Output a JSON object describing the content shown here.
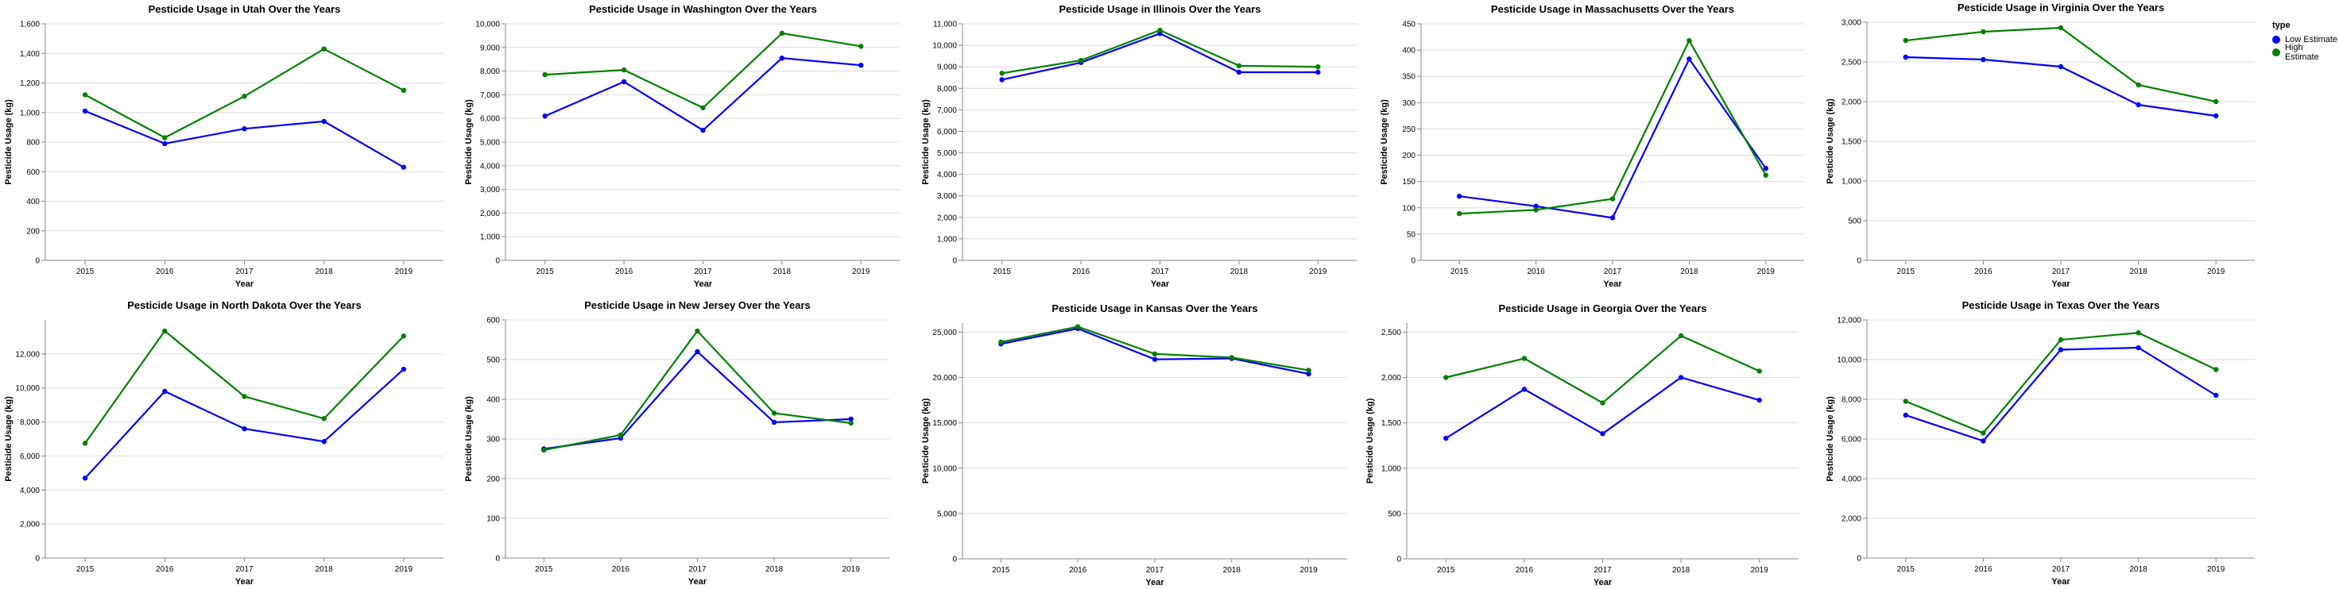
{
  "legend": {
    "title": "type",
    "items": [
      {
        "label": "Low Estimate",
        "color": "#0000ff"
      },
      {
        "label": "High Estimate",
        "color": "#008000"
      }
    ]
  },
  "chart_data": [
    {
      "type": "line",
      "title": "Pesticide Usage in Utah Over the Years",
      "x": [
        2015,
        2016,
        2017,
        2018,
        2019
      ],
      "xlabel": "Year",
      "ylabel": "Pesticide Usage (kg)",
      "ylim": [
        0,
        1600
      ],
      "yticks": [
        0,
        200,
        400,
        600,
        800,
        1000,
        1200,
        1400,
        1600
      ],
      "ytick_labels": [
        "0",
        "200",
        "400",
        "600",
        "800",
        "1,000",
        "1,200",
        "1,400",
        "1,600"
      ],
      "series": [
        {
          "name": "Low Estimate",
          "color": "#0000ff",
          "values": [
            1010,
            790,
            890,
            940,
            630
          ]
        },
        {
          "name": "High Estimate",
          "color": "#008000",
          "values": [
            1120,
            830,
            1110,
            1430,
            1150
          ]
        }
      ]
    },
    {
      "type": "line",
      "title": "Pesticide Usage in Washington Over the Years",
      "x": [
        2015,
        2016,
        2017,
        2018,
        2019
      ],
      "xlabel": "Year",
      "ylabel": "Pesticide Usage (kg)",
      "ylim": [
        0,
        10000
      ],
      "yticks": [
        0,
        1000,
        2000,
        3000,
        4000,
        5000,
        6000,
        7000,
        8000,
        9000,
        10000
      ],
      "ytick_labels": [
        "0",
        "1,000",
        "2,000",
        "3,000",
        "4,000",
        "5,000",
        "6,000",
        "7,000",
        "8,000",
        "9,000",
        "10,000"
      ],
      "series": [
        {
          "name": "Low Estimate",
          "color": "#0000ff",
          "values": [
            6100,
            7550,
            5500,
            8550,
            8250
          ]
        },
        {
          "name": "High Estimate",
          "color": "#008000",
          "values": [
            7850,
            8050,
            6450,
            9600,
            9050
          ]
        }
      ]
    },
    {
      "type": "line",
      "title": "Pesticide Usage in Illinois Over the Years",
      "x": [
        2015,
        2016,
        2017,
        2018,
        2019
      ],
      "xlabel": "Year",
      "ylabel": "Pesticide Usage (kg)",
      "ylim": [
        0,
        11000
      ],
      "yticks": [
        0,
        1000,
        2000,
        3000,
        4000,
        5000,
        6000,
        7000,
        8000,
        9000,
        10000,
        11000
      ],
      "ytick_labels": [
        "0",
        "1,000",
        "2,000",
        "3,000",
        "4,000",
        "5,000",
        "6,000",
        "7,000",
        "8,000",
        "9,000",
        "10,000",
        "11,000"
      ],
      "series": [
        {
          "name": "Low Estimate",
          "color": "#0000ff",
          "values": [
            8400,
            9200,
            10550,
            8750,
            8750
          ]
        },
        {
          "name": "High Estimate",
          "color": "#008000",
          "values": [
            8700,
            9300,
            10700,
            9050,
            9000
          ]
        }
      ]
    },
    {
      "type": "line",
      "title": "Pesticide Usage in Massachusetts Over the Years",
      "x": [
        2015,
        2016,
        2017,
        2018,
        2019
      ],
      "xlabel": "Year",
      "ylabel": "Pesticide Usage (kg)",
      "ylim": [
        0,
        450
      ],
      "yticks": [
        0,
        50,
        100,
        150,
        200,
        250,
        300,
        350,
        400,
        450
      ],
      "ytick_labels": [
        "0",
        "50",
        "100",
        "150",
        "200",
        "250",
        "300",
        "350",
        "400",
        "450"
      ],
      "series": [
        {
          "name": "Low Estimate",
          "color": "#0000ff",
          "values": [
            122,
            103,
            81,
            383,
            175
          ]
        },
        {
          "name": "High Estimate",
          "color": "#008000",
          "values": [
            89,
            96,
            117,
            418,
            162
          ]
        }
      ]
    },
    {
      "type": "line",
      "title": "Pesticide Usage in Virginia Over the Years",
      "x": [
        2015,
        2016,
        2017,
        2018,
        2019
      ],
      "xlabel": "Year",
      "ylabel": "Pesticide Usage (kg)",
      "ylim": [
        0,
        3000
      ],
      "yticks": [
        0,
        500,
        1000,
        1500,
        2000,
        2500,
        3000
      ],
      "ytick_labels": [
        "0",
        "500",
        "1,000",
        "1,500",
        "2,000",
        "2,500",
        "3,000"
      ],
      "series": [
        {
          "name": "Low Estimate",
          "color": "#0000ff",
          "values": [
            2560,
            2530,
            2440,
            1960,
            1820
          ]
        },
        {
          "name": "High Estimate",
          "color": "#008000",
          "values": [
            2770,
            2880,
            2930,
            2210,
            2000
          ]
        }
      ]
    },
    {
      "type": "line",
      "title": "Pesticide Usage in North Dakota Over the Years",
      "x": [
        2015,
        2016,
        2017,
        2018,
        2019
      ],
      "xlabel": "Year",
      "ylabel": "Pesticide Usage (kg)",
      "ylim": [
        0,
        14000
      ],
      "yticks": [
        0,
        2000,
        4000,
        6000,
        8000,
        10000,
        12000
      ],
      "ytick_labels": [
        "0",
        "2,000",
        "4,000",
        "6,000",
        "8,000",
        "10,000",
        "12,000"
      ],
      "series": [
        {
          "name": "Low Estimate",
          "color": "#0000ff",
          "values": [
            4700,
            9800,
            7600,
            6850,
            11100
          ]
        },
        {
          "name": "High Estimate",
          "color": "#008000",
          "values": [
            6750,
            13350,
            9500,
            8200,
            13050
          ]
        }
      ]
    },
    {
      "type": "line",
      "title": "Pesticide Usage in New Jersey Over the Years",
      "x": [
        2015,
        2016,
        2017,
        2018,
        2019
      ],
      "xlabel": "Year",
      "ylabel": "Pesticide Usage (kg)",
      "ylim": [
        0,
        600
      ],
      "yticks": [
        0,
        100,
        200,
        300,
        400,
        500,
        600
      ],
      "ytick_labels": [
        "0",
        "100",
        "200",
        "300",
        "400",
        "500",
        "600"
      ],
      "series": [
        {
          "name": "Low Estimate",
          "color": "#0000ff",
          "values": [
            275,
            302,
            520,
            342,
            350
          ]
        },
        {
          "name": "High Estimate",
          "color": "#008000",
          "values": [
            272,
            310,
            572,
            365,
            340
          ]
        }
      ]
    },
    {
      "type": "line",
      "title": "Pesticide Usage in Kansas Over the Years",
      "x": [
        2015,
        2016,
        2017,
        2018,
        2019
      ],
      "xlabel": "Year",
      "ylabel": "Pesticide Usage (kg)",
      "ylim": [
        0,
        26000
      ],
      "yticks": [
        0,
        5000,
        10000,
        15000,
        20000,
        25000
      ],
      "ytick_labels": [
        "0",
        "5,000",
        "10,000",
        "15,000",
        "20,000",
        "25,000"
      ],
      "series": [
        {
          "name": "Low Estimate",
          "color": "#0000ff",
          "values": [
            23700,
            25400,
            22000,
            22100,
            20400
          ]
        },
        {
          "name": "High Estimate",
          "color": "#008000",
          "values": [
            23900,
            25600,
            22600,
            22200,
            20800
          ]
        }
      ]
    },
    {
      "type": "line",
      "title": "Pesticide Usage in Georgia Over the Years",
      "x": [
        2015,
        2016,
        2017,
        2018,
        2019
      ],
      "xlabel": "Year",
      "ylabel": "Pesticide Usage (kg)",
      "ylim": [
        0,
        2600
      ],
      "yticks": [
        0,
        500,
        1000,
        1500,
        2000,
        2500
      ],
      "ytick_labels": [
        "0",
        "500",
        "1,000",
        "1,500",
        "2,000",
        "2,500"
      ],
      "series": [
        {
          "name": "Low Estimate",
          "color": "#0000ff",
          "values": [
            1330,
            1870,
            1380,
            2000,
            1750
          ]
        },
        {
          "name": "High Estimate",
          "color": "#008000",
          "values": [
            2000,
            2210,
            1720,
            2460,
            2070
          ]
        }
      ]
    },
    {
      "type": "line",
      "title": "Pesticide Usage in Texas Over the Years",
      "x": [
        2015,
        2016,
        2017,
        2018,
        2019
      ],
      "xlabel": "Year",
      "ylabel": "Pesticide Usage (kg)",
      "ylim": [
        0,
        12000
      ],
      "yticks": [
        0,
        2000,
        4000,
        6000,
        8000,
        10000,
        12000
      ],
      "ytick_labels": [
        "0",
        "2,000",
        "4,000",
        "6,000",
        "8,000",
        "10,000",
        "12,000"
      ],
      "series": [
        {
          "name": "Low Estimate",
          "color": "#0000ff",
          "values": [
            7200,
            5900,
            10500,
            10600,
            8200
          ]
        },
        {
          "name": "High Estimate",
          "color": "#008000",
          "values": [
            7900,
            6300,
            11000,
            11350,
            9500
          ]
        }
      ]
    }
  ]
}
